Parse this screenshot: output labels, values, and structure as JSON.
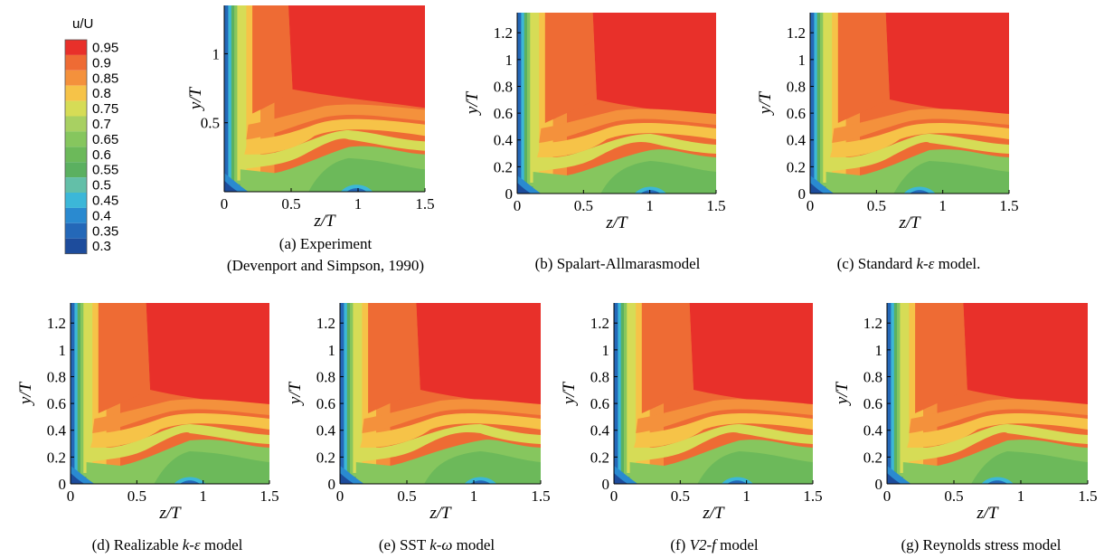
{
  "colorbar": {
    "title": "u/U",
    "levels": [
      "0.95",
      "0.9",
      "0.85",
      "0.8",
      "0.75",
      "0.7",
      "0.65",
      "0.6",
      "0.55",
      "0.5",
      "0.45",
      "0.4",
      "0.35",
      "0.3"
    ],
    "colors": [
      "#e8302a",
      "#ee6b34",
      "#f4913c",
      "#f6c348",
      "#d6dc56",
      "#a8d062",
      "#86c65e",
      "#6cb95a",
      "#5bb060",
      "#63bfa8",
      "#3cb7d8",
      "#2a8ad0",
      "#2468b8",
      "#1d4c9c"
    ]
  },
  "chart_data": [
    {
      "type": "heatmap",
      "caption": [
        "(a) Experiment",
        "(Devenport and Simpson, 1990)"
      ],
      "xlabel": "z/T",
      "ylabel": "y/T",
      "xlim": [
        0,
        1.5
      ],
      "ylim": [
        0,
        1.35
      ],
      "xticks": [
        "0",
        "0.5",
        "1",
        "1.5"
      ],
      "yticks": [
        "0.5",
        "1"
      ],
      "scalar": "u/U",
      "value_regions": [
        {
          "level": "0.95",
          "region": "z > 0.5, y > 0.5"
        },
        {
          "level": "0.9",
          "region": "0.2 < z < 0.5 and y > 0.4"
        },
        {
          "level": "0.3",
          "region": "z < 0.05, near y = 0"
        }
      ]
    },
    {
      "type": "heatmap",
      "caption": [
        "(b) Spalart-Allmarasmodel"
      ],
      "xlabel": "z/T",
      "ylabel": "y/T",
      "xlim": [
        0,
        1.5
      ],
      "ylim": [
        0,
        1.35
      ],
      "xticks": [
        "0",
        "0.5",
        "1",
        "1.5"
      ],
      "yticks": [
        "0",
        "0.2",
        "0.4",
        "0.6",
        "0.8",
        "1",
        "1.2"
      ],
      "scalar": "u/U",
      "value_regions": [
        {
          "level": "0.95",
          "region": "z > 0.6, y > 0.5"
        },
        {
          "level": "0.3",
          "region": "z < 0.08, y < 0.05; z near 1.0, y < 0.05"
        }
      ]
    },
    {
      "type": "heatmap",
      "caption": [
        "(c) Standard ",
        "k-ε",
        " model."
      ],
      "xlabel": "z/T",
      "ylabel": "y/T",
      "xlim": [
        0,
        1.5
      ],
      "ylim": [
        0,
        1.35
      ],
      "xticks": [
        "0",
        "0.5",
        "1",
        "1.5"
      ],
      "yticks": [
        "0",
        "0.2",
        "0.4",
        "0.6",
        "0.8",
        "1",
        "1.2"
      ],
      "scalar": "u/U",
      "value_regions": [
        {
          "level": "0.95",
          "region": "z > 0.6, y > 0.5"
        },
        {
          "level": "0.3",
          "region": "z < 0.1, y < 0.08"
        }
      ]
    },
    {
      "type": "heatmap",
      "caption": [
        "(d) Realizable ",
        "k-ε",
        " model"
      ],
      "xlabel": "z/T",
      "ylabel": "y/T",
      "xlim": [
        0,
        1.5
      ],
      "ylim": [
        0,
        1.35
      ],
      "xticks": [
        "0",
        "0.5",
        "1",
        "1.5"
      ],
      "yticks": [
        "0",
        "0.2",
        "0.4",
        "0.6",
        "0.8",
        "1",
        "1.2"
      ],
      "scalar": "u/U",
      "value_regions": [
        {
          "level": "0.95",
          "region": "z > 0.6, y > 0.5"
        },
        {
          "level": "0.3",
          "region": "z < 0.1, y < 0.08; z near 0.9, y < 0.04"
        }
      ]
    },
    {
      "type": "heatmap",
      "caption": [
        "(e) SST ",
        "k-ω",
        " model"
      ],
      "xlabel": "z/T",
      "ylabel": "y/T",
      "xlim": [
        0,
        1.5
      ],
      "ylim": [
        0,
        1.35
      ],
      "xticks": [
        "0",
        "0.5",
        "1",
        "1.5"
      ],
      "yticks": [
        "0",
        "0.2",
        "0.4",
        "0.6",
        "0.8",
        "1",
        "1.2"
      ],
      "scalar": "u/U",
      "value_regions": [
        {
          "level": "0.95",
          "region": "z > 0.6, y > 0.45"
        },
        {
          "level": "0.3",
          "region": "z < 0.05, y < 0.1; z near 1.05, y < 0.05"
        }
      ]
    },
    {
      "type": "heatmap",
      "caption": [
        "(f) ",
        "V2-f",
        " model"
      ],
      "xlabel": "z/T",
      "ylabel": "y/T",
      "xlim": [
        0,
        1.5
      ],
      "ylim": [
        0,
        1.35
      ],
      "xticks": [
        "0",
        "0.5",
        "1",
        "1.5"
      ],
      "yticks": [
        "0",
        "0.2",
        "0.4",
        "0.6",
        "0.8",
        "1",
        "1.2"
      ],
      "scalar": "u/U",
      "value_regions": [
        {
          "level": "0.95",
          "region": "z > 0.6, y > 0.5"
        },
        {
          "level": "0.3",
          "region": "z < 0.05, y < 0.1; z near 0.95, y < 0.04"
        }
      ]
    },
    {
      "type": "heatmap",
      "caption": [
        "(g) Reynolds stress model"
      ],
      "xlabel": "z/T",
      "ylabel": "y/T",
      "xlim": [
        0,
        1.5
      ],
      "ylim": [
        0,
        1.35
      ],
      "xticks": [
        "0",
        "0.5",
        "1",
        "1.5"
      ],
      "yticks": [
        "0",
        "0.2",
        "0.4",
        "0.6",
        "0.8",
        "1",
        "1.2"
      ],
      "scalar": "u/U",
      "value_regions": [
        {
          "level": "0.95",
          "region": "z > 0.6, y > 0.5"
        },
        {
          "level": "0.3",
          "region": "z < 0.1, y < 0.08"
        }
      ]
    }
  ]
}
